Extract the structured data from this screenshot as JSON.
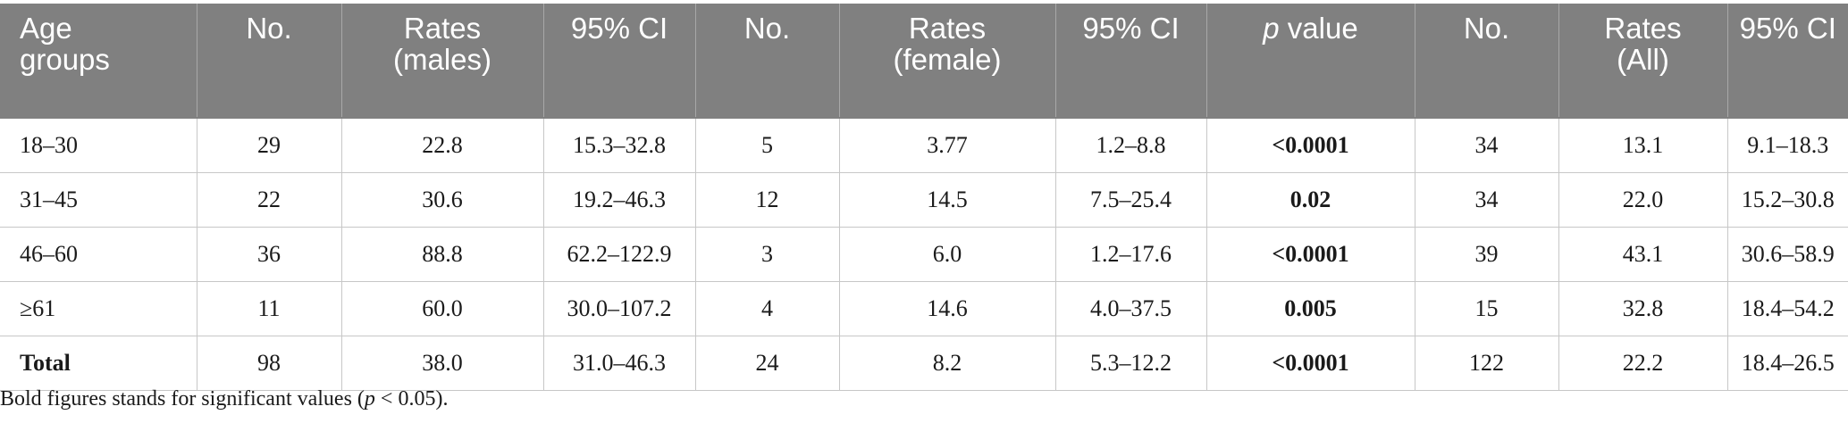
{
  "table": {
    "headers": [
      [
        "Age",
        "groups"
      ],
      [
        "No."
      ],
      [
        "Rates",
        "(males)"
      ],
      [
        "95% CI"
      ],
      [
        "No."
      ],
      [
        "Rates",
        "(female)"
      ],
      [
        "95% CI"
      ],
      [
        "p value"
      ],
      [
        "No."
      ],
      [
        "Rates",
        "(All)"
      ],
      [
        "95% CI"
      ]
    ],
    "rows": [
      {
        "age": "18–30",
        "m_no": "29",
        "m_rate": "22.8",
        "m_ci": "15.3–32.8",
        "f_no": "5",
        "f_rate": "3.77",
        "f_ci": "1.2–8.8",
        "p": "<0.0001",
        "a_no": "34",
        "a_rate": "13.1",
        "a_ci": "9.1–18.3"
      },
      {
        "age": "31–45",
        "m_no": "22",
        "m_rate": "30.6",
        "m_ci": "19.2–46.3",
        "f_no": "12",
        "f_rate": "14.5",
        "f_ci": "7.5–25.4",
        "p": "0.02",
        "a_no": "34",
        "a_rate": "22.0",
        "a_ci": "15.2–30.8"
      },
      {
        "age": "46–60",
        "m_no": "36",
        "m_rate": "88.8",
        "m_ci": "62.2–122.9",
        "f_no": "3",
        "f_rate": "6.0",
        "f_ci": "1.2–17.6",
        "p": "<0.0001",
        "a_no": "39",
        "a_rate": "43.1",
        "a_ci": "30.6–58.9"
      },
      {
        "age": "≥61",
        "m_no": "11",
        "m_rate": "60.0",
        "m_ci": "30.0–107.2",
        "f_no": "4",
        "f_rate": "14.6",
        "f_ci": "4.0–37.5",
        "p": "0.005",
        "a_no": "15",
        "a_rate": "32.8",
        "a_ci": "18.4–54.2"
      },
      {
        "age": "Total",
        "m_no": "98",
        "m_rate": "38.0",
        "m_ci": "31.0–46.3",
        "f_no": "24",
        "f_rate": "8.2",
        "f_ci": "5.3–12.2",
        "p": "<0.0001",
        "a_no": "122",
        "a_rate": "22.2",
        "a_ci": "18.4–26.5"
      }
    ]
  },
  "footnote": "Bold figures stands for significant values (p < 0.05)."
}
